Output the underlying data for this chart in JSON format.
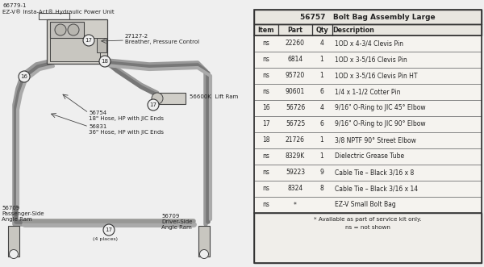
{
  "bg_color": "#efefef",
  "title_line1": "66779-1",
  "title_line2": "EZ-V® Insta-Act® Hydraulic Power Unit",
  "table_title_part": "56757",
  "table_title_desc": "Bolt Bag Assembly Large",
  "table_headers": [
    "Item",
    "Part",
    "Qty",
    "Description"
  ],
  "table_rows": [
    [
      "ns",
      "22260",
      "4",
      "1OD x 4-3/4 Clevis Pin"
    ],
    [
      "ns",
      "6814",
      "1",
      "1OD x 3-5/16 Clevis Pin"
    ],
    [
      "ns",
      "95720",
      "1",
      "1OD x 3-5/16 Clevis Pin HT"
    ],
    [
      "ns",
      "90601",
      "6",
      "1/4 x 1-1/2 Cotter Pin"
    ],
    [
      "16",
      "56726",
      "4",
      "9/16\" O-Ring to JIC 45° Elbow"
    ],
    [
      "17",
      "56725",
      "6",
      "9/16\" O-Ring to JIC 90° Elbow"
    ],
    [
      "18",
      "21726",
      "1",
      "3/8 NPTF 90° Street Elbow"
    ],
    [
      "ns",
      "8329K",
      "1",
      "Dielectric Grease Tube"
    ],
    [
      "ns",
      "59223",
      "9",
      "Cable Tie – Black 3/16 x 8"
    ],
    [
      "ns",
      "8324",
      "8",
      "Cable Tie – Black 3/16 x 14"
    ],
    [
      "ns",
      "*",
      "",
      "EZ-V Small Bolt Bag"
    ]
  ],
  "table_footer1": "* Available as part of service kit only.",
  "table_footer2": "ns = not shown",
  "label_breather_num": "27127-2",
  "label_breather": "Breather, Pressure Control",
  "label_lift_ram": "56600K  Lift Ram",
  "label_hose1_num": "56754",
  "label_hose1": "18\" Hose, HP with JIC Ends",
  "label_hose2_num": "56831",
  "label_hose2": "36\" Hose, HP with JIC Ends",
  "label_pass_ram": "56709\nPassenger-Side\nAngle Ram",
  "label_driver_ram": "56709\nDriver-Side\nAngle Ram",
  "label_4places": "(4 places)"
}
